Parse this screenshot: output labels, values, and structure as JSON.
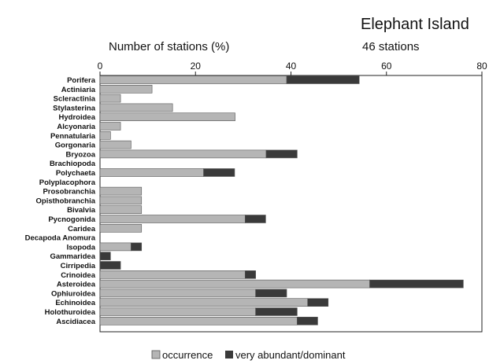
{
  "chart_data": {
    "type": "bar",
    "orientation": "horizontal",
    "stacked": true,
    "title": "Elephant Island",
    "subtitle": "46 stations",
    "xlabel": "Number of stations (%)",
    "ylabel": "",
    "xlim": [
      0,
      80
    ],
    "xticks": [
      "0",
      "20",
      "40",
      "60",
      "80"
    ],
    "grid": false,
    "legend_position": "bottom",
    "categories": [
      "Porifera",
      "Actiniaria",
      "Scleractinia",
      "Stylasterina",
      "Hydroidea",
      "Alcyonaria",
      "Pennatularia",
      "Gorgonaria",
      "Bryozoa",
      "Brachiopoda",
      "Polychaeta",
      "Polyplacophora",
      "Prosobranchia",
      "Opisthobranchia",
      "Bivalvia",
      "Pycnogonida",
      "Caridea",
      "Decapoda Anomura",
      "Isopoda",
      "Gammaridea",
      "Cirripedia",
      "Crinoidea",
      "Asteroidea",
      "Ophiuroidea",
      "Echinoidea",
      "Holothuroidea",
      "Ascidiacea"
    ],
    "series": [
      {
        "name": "occurrence",
        "color": "#b5b5b5",
        "values": [
          39.1,
          10.9,
          4.3,
          15.2,
          28.3,
          4.3,
          2.2,
          6.5,
          34.8,
          0,
          21.7,
          0,
          8.7,
          8.7,
          8.7,
          30.4,
          8.7,
          0,
          6.5,
          0,
          0,
          30.4,
          56.5,
          32.6,
          43.5,
          32.6,
          41.3
        ]
      },
      {
        "name": "very abundant/dominant",
        "color": "#3a3a3a",
        "values": [
          15.2,
          0,
          0,
          0,
          0,
          0,
          0,
          0,
          6.5,
          0,
          6.5,
          0,
          0,
          0,
          0,
          4.3,
          0,
          0,
          2.2,
          2.2,
          4.3,
          2.2,
          19.6,
          6.5,
          4.3,
          8.7,
          4.3
        ]
      }
    ]
  }
}
